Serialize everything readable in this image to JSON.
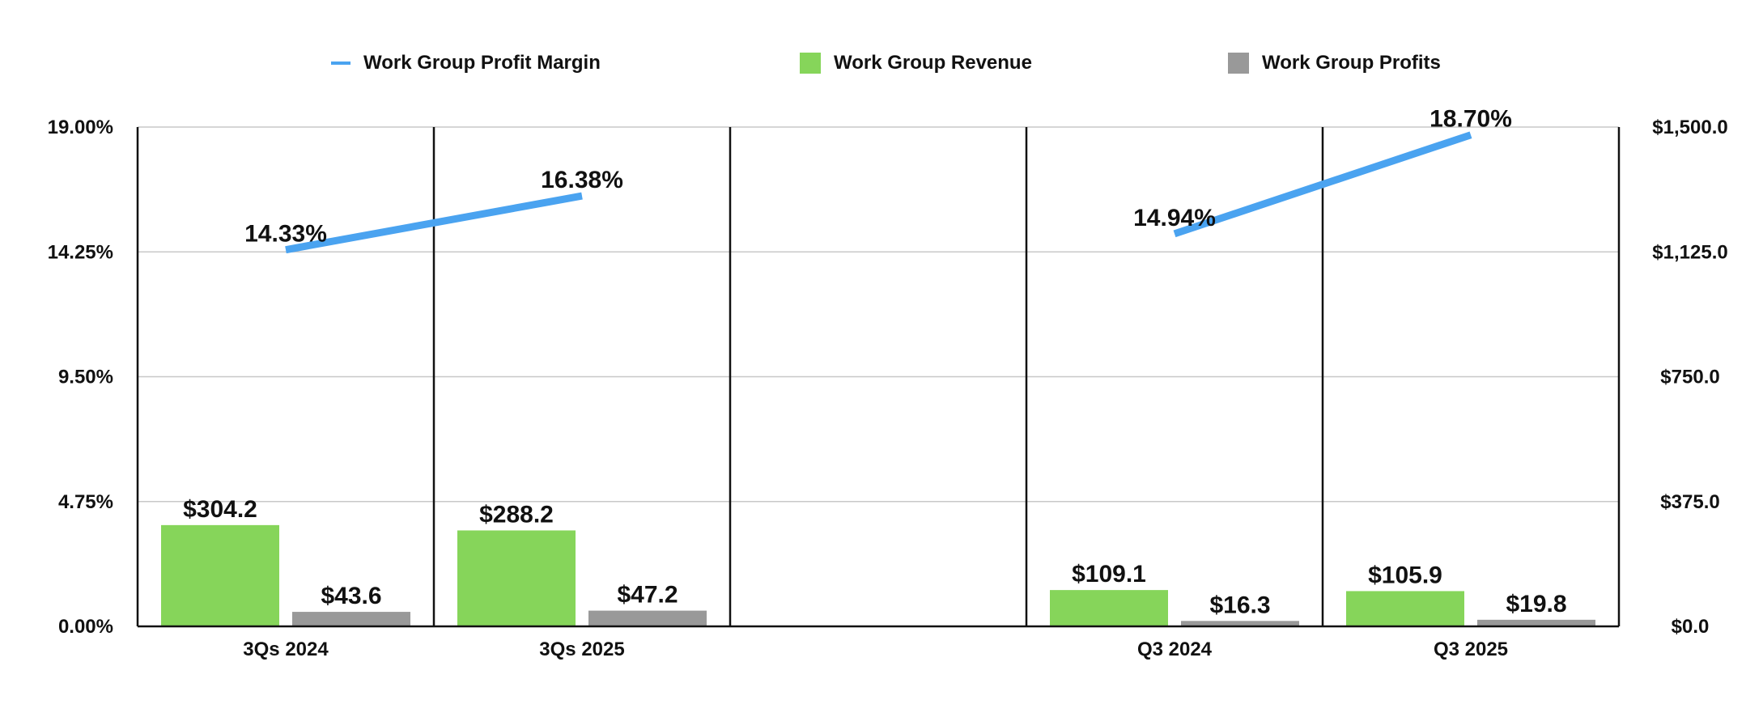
{
  "chart_data": {
    "type": "bar",
    "categories": [
      "3Qs 2024",
      "3Qs 2025",
      "",
      "Q3 2024",
      "Q3 2025"
    ],
    "series": [
      {
        "name": "Work Group Profit Margin",
        "kind": "line",
        "axis": "left",
        "color": "#4aa3f0",
        "groups": [
          [
            0,
            1
          ],
          [
            3,
            4
          ]
        ],
        "values": [
          14.33,
          16.38,
          null,
          14.94,
          18.7
        ],
        "labels": [
          "14.33%",
          "16.38%",
          "",
          "14.94%",
          "18.70%"
        ]
      },
      {
        "name": "Work Group Revenue",
        "kind": "bar",
        "axis": "right",
        "color": "#86d55a",
        "values": [
          304.2,
          288.2,
          null,
          109.1,
          105.9
        ],
        "labels": [
          "$304.2",
          "$288.2",
          "",
          "$109.1",
          "$105.9"
        ]
      },
      {
        "name": "Work Group Profits",
        "kind": "bar",
        "axis": "right",
        "color": "#999999",
        "values": [
          43.6,
          47.2,
          null,
          16.3,
          19.8
        ],
        "labels": [
          "$43.6",
          "$47.2",
          "",
          "$16.3",
          "$19.8"
        ]
      }
    ],
    "y_left": {
      "range": [
        0,
        19
      ],
      "ticks": [
        0,
        4.75,
        9.5,
        14.25,
        19
      ],
      "tick_labels": [
        "0.00%",
        "4.75%",
        "9.50%",
        "14.25%",
        "19.00%"
      ]
    },
    "y_right": {
      "range": [
        0,
        1500
      ],
      "ticks": [
        0,
        375,
        750,
        1125,
        1500
      ],
      "tick_labels": [
        "$0.0",
        "$375.0",
        "$750.0",
        "$1,125.0",
        "$1,500.0"
      ]
    },
    "grid": true,
    "legend": "top-center"
  }
}
